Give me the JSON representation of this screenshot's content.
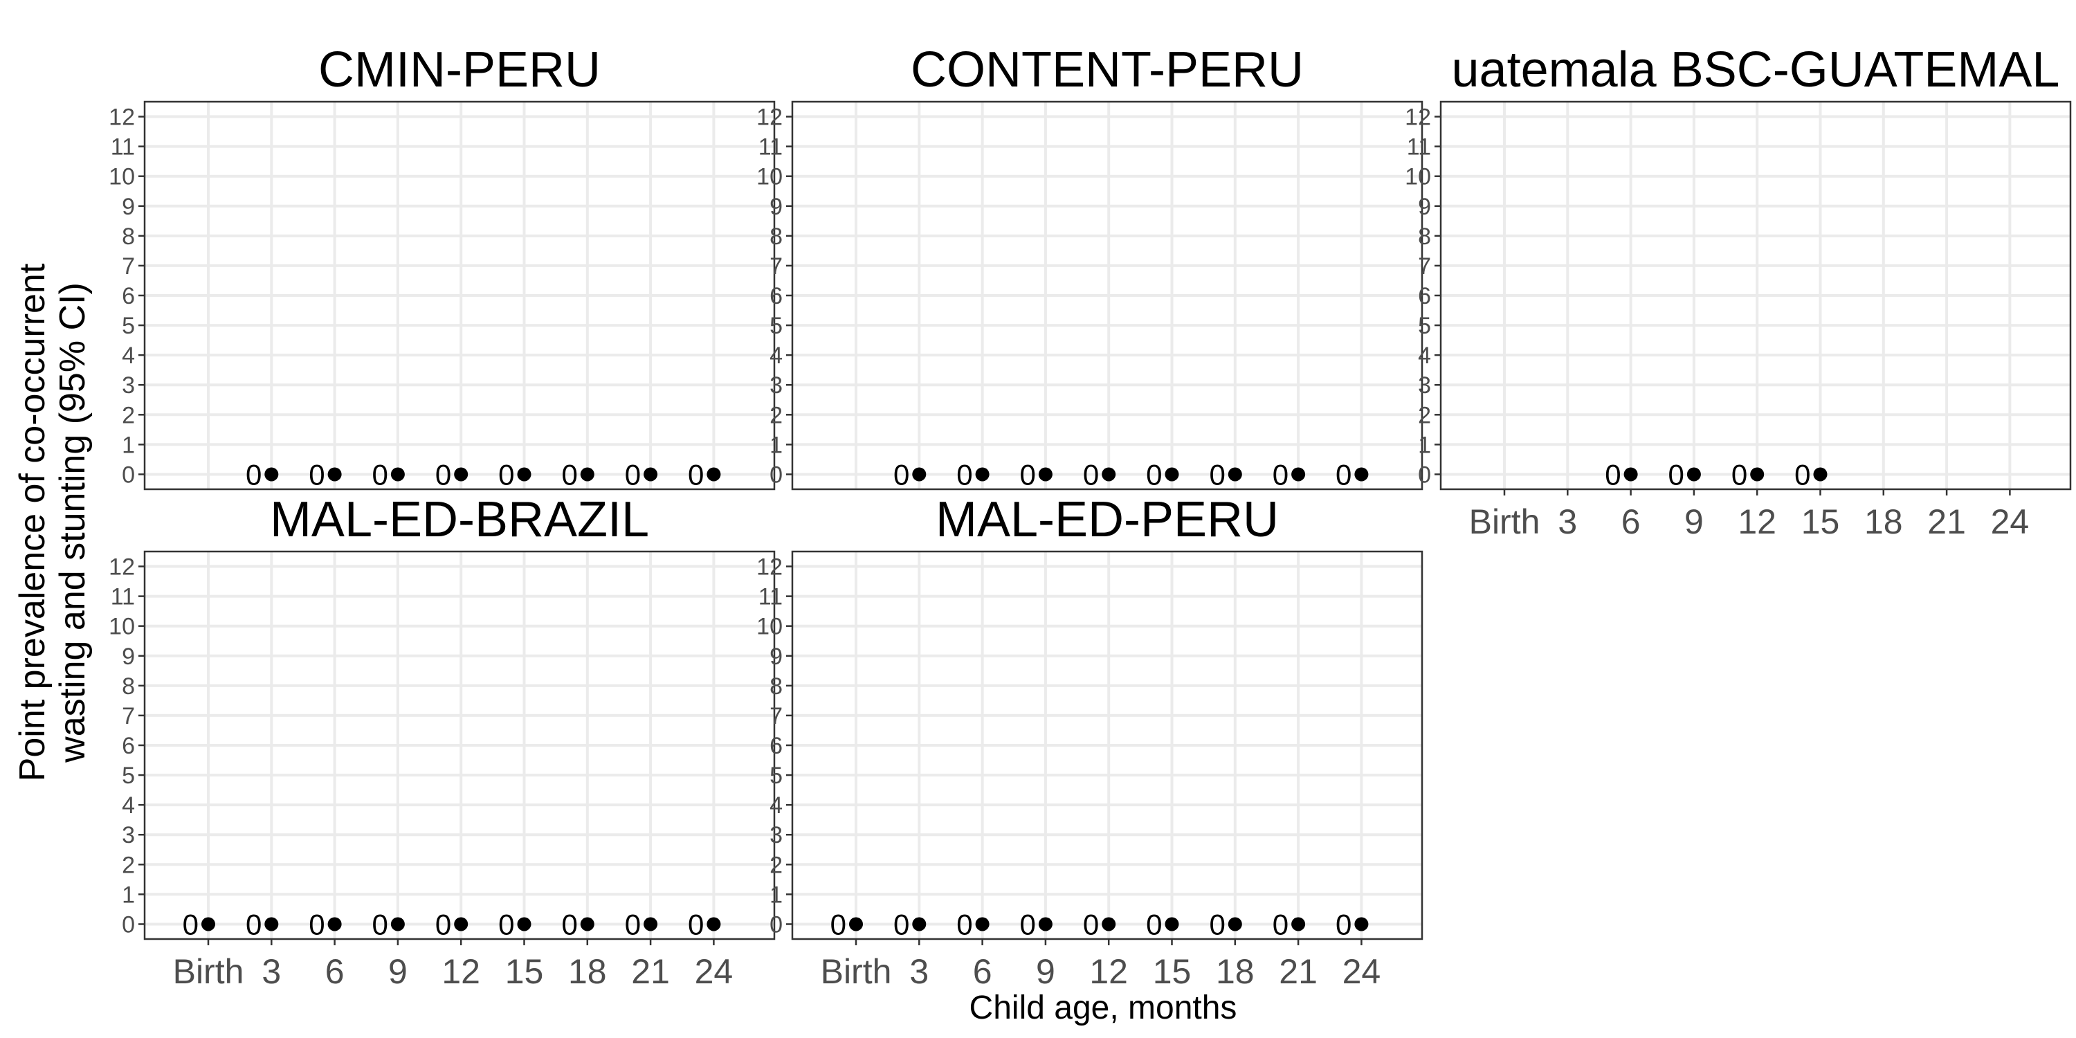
{
  "chart_data": {
    "type": "scatter",
    "ylabel": "Point prevalence of co-occurrent wasting and stunting (95% CI)",
    "ylabel_lines": [
      "Point prevalence of co-occurrent",
      "wasting and stunting (95% CI)"
    ],
    "xlabel": "Child age, months",
    "x_categories": [
      "Birth",
      "3",
      "6",
      "9",
      "12",
      "15",
      "18",
      "21",
      "24"
    ],
    "y_ticks": [
      "0",
      "1",
      "2",
      "3",
      "4",
      "5",
      "6",
      "7",
      "8",
      "9",
      "10",
      "11",
      "12"
    ],
    "ylim": [
      -0.5,
      12.5
    ],
    "grid": true,
    "legend": "none",
    "colors": {
      "point": "#000000",
      "grid_major": "#ebebeb",
      "grid_minor": "#f2f2f2",
      "panel_border": "#333333",
      "tick_text": "#4d4d4d"
    },
    "panels": [
      {
        "title": "CMIN-PERU",
        "show_x_ticks": false,
        "points": [
          {
            "x": "3",
            "y": 0,
            "label": "0"
          },
          {
            "x": "6",
            "y": 0,
            "label": "0"
          },
          {
            "x": "9",
            "y": 0,
            "label": "0"
          },
          {
            "x": "12",
            "y": 0,
            "label": "0"
          },
          {
            "x": "15",
            "y": 0,
            "label": "0"
          },
          {
            "x": "18",
            "y": 0,
            "label": "0"
          },
          {
            "x": "21",
            "y": 0,
            "label": "0"
          },
          {
            "x": "24",
            "y": 0,
            "label": "0"
          }
        ]
      },
      {
        "title": "CONTENT-PERU",
        "show_x_ticks": false,
        "points": [
          {
            "x": "3",
            "y": 0,
            "label": "0"
          },
          {
            "x": "6",
            "y": 0,
            "label": "0"
          },
          {
            "x": "9",
            "y": 0,
            "label": "0"
          },
          {
            "x": "12",
            "y": 0,
            "label": "0"
          },
          {
            "x": "15",
            "y": 0,
            "label": "0"
          },
          {
            "x": "18",
            "y": 0,
            "label": "0"
          },
          {
            "x": "21",
            "y": 0,
            "label": "0"
          },
          {
            "x": "24",
            "y": 0,
            "label": "0"
          }
        ]
      },
      {
        "title": "uatemala BSC-GUATEMAL",
        "show_x_ticks": true,
        "points": [
          {
            "x": "6",
            "y": 0,
            "label": "0"
          },
          {
            "x": "9",
            "y": 0,
            "label": "0"
          },
          {
            "x": "12",
            "y": 0,
            "label": "0"
          },
          {
            "x": "15",
            "y": 0,
            "label": "0"
          }
        ]
      },
      {
        "title": "MAL-ED-BRAZIL",
        "show_x_ticks": true,
        "points": [
          {
            "x": "Birth",
            "y": 0,
            "label": "0"
          },
          {
            "x": "3",
            "y": 0,
            "label": "0"
          },
          {
            "x": "6",
            "y": 0,
            "label": "0"
          },
          {
            "x": "9",
            "y": 0,
            "label": "0"
          },
          {
            "x": "12",
            "y": 0,
            "label": "0"
          },
          {
            "x": "15",
            "y": 0,
            "label": "0"
          },
          {
            "x": "18",
            "y": 0,
            "label": "0"
          },
          {
            "x": "21",
            "y": 0,
            "label": "0"
          },
          {
            "x": "24",
            "y": 0,
            "label": "0"
          }
        ]
      },
      {
        "title": "MAL-ED-PERU",
        "show_x_ticks": true,
        "points": [
          {
            "x": "Birth",
            "y": 0,
            "label": "0"
          },
          {
            "x": "3",
            "y": 0,
            "label": "0"
          },
          {
            "x": "6",
            "y": 0,
            "label": "0"
          },
          {
            "x": "9",
            "y": 0,
            "label": "0"
          },
          {
            "x": "12",
            "y": 0,
            "label": "0"
          },
          {
            "x": "15",
            "y": 0,
            "label": "0"
          },
          {
            "x": "18",
            "y": 0,
            "label": "0"
          },
          {
            "x": "21",
            "y": 0,
            "label": "0"
          },
          {
            "x": "24",
            "y": 0,
            "label": "0"
          }
        ]
      }
    ]
  }
}
